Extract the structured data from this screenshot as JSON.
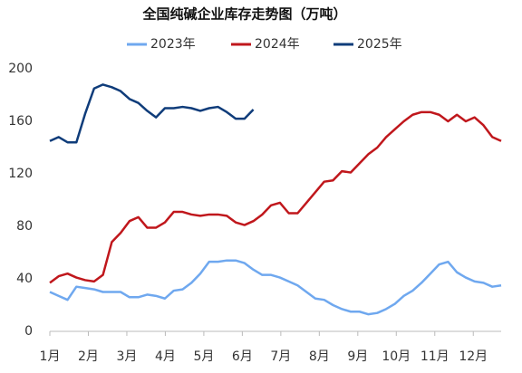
{
  "chart_data": {
    "type": "line",
    "title": "全国纯碱企业库存走势图（万吨）",
    "x": [
      1,
      2,
      3,
      4,
      5,
      6,
      7,
      8,
      9,
      10,
      11,
      12,
      13,
      14,
      15,
      16,
      17,
      18,
      19,
      20,
      21,
      22,
      23,
      24,
      25,
      26,
      27,
      28,
      29,
      30,
      31,
      32,
      33,
      34,
      35,
      36,
      37,
      38,
      39,
      40,
      41,
      42,
      43,
      44,
      45,
      46,
      47,
      48,
      49,
      50,
      51,
      52
    ],
    "xlim": [
      1,
      52
    ],
    "xticks": [
      {
        "value": 1,
        "label": "1月"
      },
      {
        "value": 5.35,
        "label": "2月"
      },
      {
        "value": 9.7,
        "label": "3月"
      },
      {
        "value": 14.05,
        "label": "4月"
      },
      {
        "value": 18.4,
        "label": "5月"
      },
      {
        "value": 22.75,
        "label": "6月"
      },
      {
        "value": 27.1,
        "label": "7月"
      },
      {
        "value": 31.45,
        "label": "8月"
      },
      {
        "value": 35.8,
        "label": "9月"
      },
      {
        "value": 40.15,
        "label": "10月"
      },
      {
        "value": 44.5,
        "label": "11月"
      },
      {
        "value": 48.85,
        "label": "12月"
      }
    ],
    "ylim": [
      0,
      200
    ],
    "yticks": [
      0,
      40,
      80,
      120,
      160,
      200
    ],
    "series": [
      {
        "name": "2023年",
        "color": "#6fa8ef",
        "values": [
          30,
          27,
          24,
          34,
          33,
          32,
          30,
          30,
          30,
          26,
          26,
          28,
          27,
          25,
          31,
          32,
          37,
          44,
          53,
          53,
          54,
          54,
          52,
          47,
          43,
          43,
          41,
          38,
          35,
          30,
          25,
          24,
          20,
          17,
          15,
          15,
          13,
          14,
          17,
          21,
          27,
          31,
          37,
          44,
          51,
          53,
          45,
          41,
          38,
          37,
          34,
          35
        ]
      },
      {
        "name": "2024年",
        "color": "#c0171c",
        "values": [
          37,
          42,
          44,
          41,
          39,
          38,
          43,
          68,
          75,
          84,
          87,
          79,
          79,
          83,
          91,
          91,
          89,
          88,
          89,
          89,
          88,
          83,
          81,
          84,
          89,
          96,
          98,
          90,
          90,
          98,
          106,
          114,
          115,
          122,
          121,
          128,
          135,
          140,
          148,
          154,
          160,
          165,
          167,
          167,
          165,
          160,
          165,
          160,
          163,
          157,
          148,
          145
        ]
      },
      {
        "name": "2025年",
        "color": "#0f3c7a",
        "values": [
          145,
          148,
          144,
          144,
          166,
          185,
          188,
          186,
          183,
          177,
          174,
          168,
          163,
          170,
          170,
          171,
          170,
          168,
          170,
          171,
          167,
          162,
          162,
          169,
          null,
          null,
          null,
          null,
          null,
          null,
          null,
          null,
          null,
          null,
          null,
          null,
          null,
          null,
          null,
          null,
          null,
          null,
          null,
          null,
          null,
          null,
          null,
          null,
          null,
          null,
          null,
          null
        ]
      }
    ]
  }
}
